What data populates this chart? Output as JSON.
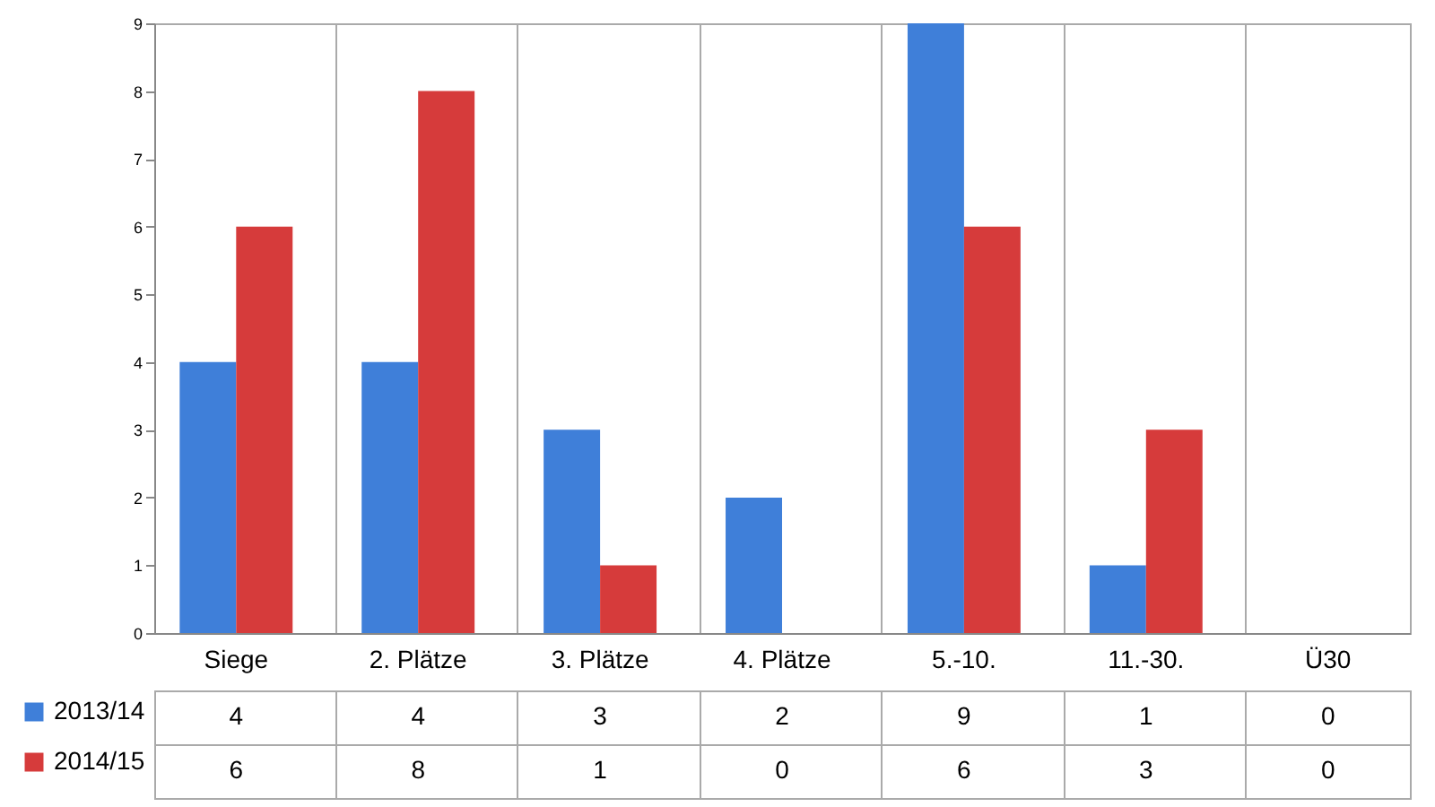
{
  "chart_data": {
    "type": "bar",
    "categories": [
      "Siege",
      "2. Plätze",
      "3. Plätze",
      "4. Plätze",
      "5.-10.",
      "11.-30.",
      "Ü30"
    ],
    "series": [
      {
        "name": "2013/14",
        "color": "#3f7fd9",
        "values": [
          4,
          4,
          3,
          2,
          9,
          1,
          0
        ]
      },
      {
        "name": "2014/15",
        "color": "#d63b3b",
        "values": [
          6,
          8,
          1,
          0,
          6,
          3,
          0
        ]
      }
    ],
    "ylim": [
      0,
      9
    ],
    "yticks": [
      0,
      1,
      2,
      3,
      4,
      5,
      6,
      7,
      8,
      9
    ],
    "data_labels": true,
    "legend": "bottom left"
  }
}
